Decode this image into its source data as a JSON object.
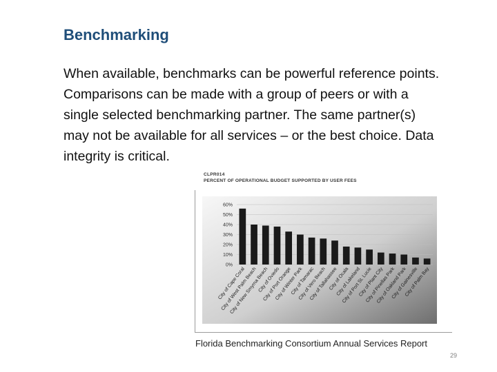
{
  "slide": {
    "title": "Benchmarking",
    "body": "When available, benchmarks can be powerful reference points. Comparisons can be made with a group of peers or with a single selected benchmarking partner.  The same partner(s) may not be available for all services – or the best choice.  Data integrity is critical.",
    "caption": "Florida Benchmarking Consortium Annual Services Report",
    "page_number": "29"
  },
  "chart_data": {
    "type": "bar",
    "code": "CLPR014",
    "title": "PERCENT OF OPERATIONAL BUDGET SUPPORTED BY USER FEES",
    "xlabel": "",
    "ylabel": "",
    "categories": [
      "City of Cape Coral",
      "City of West Palm Beach",
      "City of New Smyrna Beach",
      "City of Oviedo",
      "City of Port Orange",
      "City of Winter Park",
      "City of Tamarac",
      "City of Vero Beach",
      "City of Tallahassee",
      "City of Ocala",
      "City of Lakeland",
      "City of Port St. Lucie",
      "City of Plant City",
      "City of Pinellas Park",
      "City of Oakland Park",
      "City of Gainesville",
      "City of Palm Bay"
    ],
    "values": [
      56,
      40,
      39,
      38,
      33,
      30,
      27,
      26,
      24,
      18,
      17,
      15,
      12,
      11,
      10,
      7,
      6
    ],
    "ytick_labels": [
      "0%",
      "10%",
      "20%",
      "30%",
      "40%",
      "50%",
      "60%"
    ],
    "ylim": [
      0,
      60
    ],
    "grid": true,
    "legend": "none",
    "colors": {
      "bar": "#1a1a1a",
      "plot_bg_light": "#f4f4f4",
      "plot_bg_dark": "#7a7a7a",
      "grid": "#bdbdbd"
    }
  }
}
